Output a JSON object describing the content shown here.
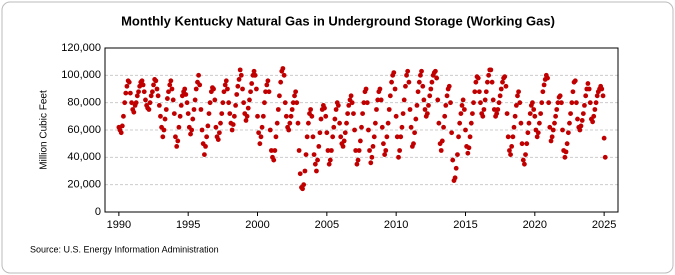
{
  "chart_data": {
    "type": "scatter",
    "title": "Monthly Kentucky Natural Gas in Underground Storage (Working Gas)",
    "y_label": "Million Cubic Feet",
    "source": "Source: U.S. Energy Information Administration",
    "color": "#c00000",
    "grid": true,
    "xlim": [
      1989,
      2026
    ],
    "ylim": [
      0,
      120000
    ],
    "xticks": [
      1990,
      1995,
      2000,
      2005,
      2010,
      2015,
      2020,
      2025
    ],
    "yticks": [
      0,
      {
        "value": 20000,
        "label": "20,000"
      },
      {
        "value": 40000,
        "label": "40,000"
      },
      {
        "value": 60000,
        "label": "60,000"
      },
      {
        "value": 80000,
        "label": "80,000"
      },
      {
        "value": 100000,
        "label": "100,000"
      },
      {
        "value": 120000,
        "label": "120,000"
      }
    ],
    "x": [
      1990,
      1990.08,
      1990.17,
      1990.25,
      1990.33,
      1990.42,
      1990.5,
      1990.58,
      1990.67,
      1990.75,
      1990.83,
      1990.92,
      1991,
      1991.08,
      1991.17,
      1991.25,
      1991.33,
      1991.42,
      1991.5,
      1991.58,
      1991.67,
      1991.75,
      1991.83,
      1991.92,
      1992,
      1992.08,
      1992.17,
      1992.25,
      1992.33,
      1992.42,
      1992.5,
      1992.58,
      1992.67,
      1992.75,
      1992.83,
      1992.92,
      1993,
      1993.08,
      1993.17,
      1993.25,
      1993.33,
      1993.42,
      1993.5,
      1993.58,
      1993.67,
      1993.75,
      1993.83,
      1993.92,
      1994,
      1994.08,
      1994.17,
      1994.25,
      1994.33,
      1994.42,
      1994.5,
      1994.58,
      1994.67,
      1994.75,
      1994.83,
      1994.92,
      1995,
      1995.08,
      1995.17,
      1995.25,
      1995.33,
      1995.42,
      1995.5,
      1995.58,
      1995.67,
      1995.75,
      1995.83,
      1995.92,
      1996,
      1996.08,
      1996.17,
      1996.25,
      1996.33,
      1996.42,
      1996.5,
      1996.58,
      1996.67,
      1996.75,
      1996.83,
      1996.92,
      1997,
      1997.08,
      1997.17,
      1997.25,
      1997.33,
      1997.42,
      1997.5,
      1997.58,
      1997.67,
      1997.75,
      1997.83,
      1997.92,
      1998,
      1998.08,
      1998.17,
      1998.25,
      1998.33,
      1998.42,
      1998.5,
      1998.58,
      1998.67,
      1998.75,
      1998.83,
      1998.92,
      1999,
      1999.08,
      1999.17,
      1999.25,
      1999.33,
      1999.42,
      1999.5,
      1999.58,
      1999.67,
      1999.75,
      1999.83,
      1999.92,
      2000,
      2000.08,
      2000.17,
      2000.25,
      2000.33,
      2000.42,
      2000.5,
      2000.58,
      2000.67,
      2000.75,
      2000.83,
      2000.92,
      2001,
      2001.08,
      2001.17,
      2001.25,
      2001.33,
      2001.42,
      2001.5,
      2001.58,
      2001.67,
      2001.75,
      2001.83,
      2001.92,
      2002,
      2002.08,
      2002.17,
      2002.25,
      2002.33,
      2002.42,
      2002.5,
      2002.58,
      2002.67,
      2002.75,
      2002.83,
      2002.92,
      2003,
      2003.08,
      2003.17,
      2003.25,
      2003.33,
      2003.42,
      2003.5,
      2003.58,
      2003.67,
      2003.75,
      2003.83,
      2003.92,
      2004,
      2004.08,
      2004.17,
      2004.25,
      2004.33,
      2004.42,
      2004.5,
      2004.58,
      2004.67,
      2004.75,
      2004.83,
      2004.92,
      2005,
      2005.08,
      2005.17,
      2005.25,
      2005.33,
      2005.42,
      2005.5,
      2005.58,
      2005.67,
      2005.75,
      2005.83,
      2005.92,
      2006,
      2006.08,
      2006.17,
      2006.25,
      2006.33,
      2006.42,
      2006.5,
      2006.58,
      2006.67,
      2006.75,
      2006.83,
      2006.92,
      2007,
      2007.08,
      2007.17,
      2007.25,
      2007.33,
      2007.42,
      2007.5,
      2007.58,
      2007.67,
      2007.75,
      2007.83,
      2007.92,
      2008,
      2008.08,
      2008.17,
      2008.25,
      2008.33,
      2008.42,
      2008.5,
      2008.58,
      2008.67,
      2008.75,
      2008.83,
      2008.92,
      2009,
      2009.08,
      2009.17,
      2009.25,
      2009.33,
      2009.42,
      2009.5,
      2009.58,
      2009.67,
      2009.75,
      2009.83,
      2009.92,
      2010,
      2010.08,
      2010.17,
      2010.25,
      2010.33,
      2010.42,
      2010.5,
      2010.58,
      2010.67,
      2010.75,
      2010.83,
      2010.92,
      2011,
      2011.08,
      2011.17,
      2011.25,
      2011.33,
      2011.42,
      2011.5,
      2011.58,
      2011.67,
      2011.75,
      2011.83,
      2011.92,
      2012,
      2012.08,
      2012.17,
      2012.25,
      2012.33,
      2012.42,
      2012.5,
      2012.58,
      2012.67,
      2012.75,
      2012.83,
      2012.92,
      2013,
      2013.08,
      2013.17,
      2013.25,
      2013.33,
      2013.42,
      2013.5,
      2013.58,
      2013.67,
      2013.75,
      2013.83,
      2013.92,
      2014,
      2014.08,
      2014.17,
      2014.25,
      2014.33,
      2014.42,
      2014.5,
      2014.58,
      2014.67,
      2014.75,
      2014.83,
      2014.92,
      2015,
      2015.08,
      2015.17,
      2015.25,
      2015.33,
      2015.42,
      2015.5,
      2015.58,
      2015.67,
      2015.75,
      2015.83,
      2015.92,
      2016,
      2016.08,
      2016.17,
      2016.25,
      2016.33,
      2016.42,
      2016.5,
      2016.58,
      2016.67,
      2016.75,
      2016.83,
      2016.92,
      2017,
      2017.08,
      2017.17,
      2017.25,
      2017.33,
      2017.42,
      2017.5,
      2017.58,
      2017.67,
      2017.75,
      2017.83,
      2017.92,
      2018,
      2018.08,
      2018.17,
      2018.25,
      2018.33,
      2018.42,
      2018.5,
      2018.58,
      2018.67,
      2018.75,
      2018.83,
      2018.92,
      2019,
      2019.08,
      2019.17,
      2019.25,
      2019.33,
      2019.42,
      2019.5,
      2019.58,
      2019.67,
      2019.75,
      2019.83,
      2019.92,
      2020,
      2020.08,
      2020.17,
      2020.25,
      2020.33,
      2020.42,
      2020.5,
      2020.58,
      2020.67,
      2020.75,
      2020.83,
      2020.92,
      2021,
      2021.08,
      2021.17,
      2021.25,
      2021.33,
      2021.42,
      2021.5,
      2021.58,
      2021.67,
      2021.75,
      2021.83,
      2021.92,
      2022,
      2022.08,
      2022.17,
      2022.25,
      2022.33,
      2022.42,
      2022.5,
      2022.58,
      2022.67,
      2022.75,
      2022.83,
      2022.92,
      2023,
      2023.08,
      2023.17,
      2023.25,
      2023.33,
      2023.42,
      2023.5,
      2023.58,
      2023.67,
      2023.75,
      2023.83,
      2023.92,
      2024,
      2024.08,
      2024.17,
      2024.25,
      2024.33,
      2024.42,
      2024.5,
      2024.58,
      2024.67,
      2024.75,
      2024.83,
      2024.92,
      2025,
      2025.08
    ],
    "values": [
      62000,
      60000,
      58000,
      63000,
      70000,
      80000,
      87000,
      92000,
      96000,
      95000,
      87000,
      80000,
      75000,
      73000,
      78000,
      80000,
      85000,
      88000,
      92000,
      95000,
      96000,
      93000,
      88000,
      82000,
      78000,
      76000,
      75000,
      80000,
      85000,
      88000,
      93000,
      97000,
      96000,
      90000,
      85000,
      78000,
      70000,
      62000,
      55000,
      60000,
      68000,
      75000,
      83000,
      88000,
      93000,
      96000,
      90000,
      82000,
      72000,
      55000,
      48000,
      52000,
      62000,
      70000,
      78000,
      85000,
      88000,
      90000,
      86000,
      80000,
      72000,
      62000,
      57000,
      60000,
      68000,
      75000,
      82000,
      90000,
      95000,
      100000,
      93000,
      75000,
      60000,
      50000,
      42000,
      48000,
      55000,
      63000,
      72000,
      80000,
      88000,
      91000,
      90000,
      82000,
      62000,
      55000,
      53000,
      58000,
      65000,
      72000,
      80000,
      88000,
      93000,
      96000,
      90000,
      80000,
      72000,
      65000,
      60000,
      64000,
      70000,
      78000,
      86000,
      92000,
      97000,
      104000,
      100000,
      90000,
      80000,
      72000,
      67000,
      70000,
      76000,
      82000,
      88000,
      94000,
      100000,
      103000,
      100000,
      90000,
      70000,
      58000,
      50000,
      55000,
      62000,
      70000,
      80000,
      88000,
      93000,
      96000,
      88000,
      60000,
      45000,
      40000,
      38000,
      45000,
      55000,
      65000,
      75000,
      85000,
      95000,
      103000,
      105000,
      100000,
      80000,
      70000,
      62000,
      60000,
      65000,
      70000,
      75000,
      80000,
      85000,
      88000,
      80000,
      65000,
      45000,
      28000,
      18000,
      17000,
      20000,
      30000,
      42000,
      55000,
      65000,
      72000,
      75000,
      70000,
      55000,
      42000,
      35000,
      30000,
      38000,
      48000,
      58000,
      68000,
      75000,
      78000,
      76000,
      70000,
      58000,
      45000,
      35000,
      38000,
      45000,
      55000,
      62000,
      68000,
      75000,
      80000,
      78000,
      65000,
      55000,
      50000,
      48000,
      52000,
      58000,
      65000,
      72000,
      78000,
      82000,
      85000,
      80000,
      72000,
      60000,
      45000,
      35000,
      38000,
      45000,
      52000,
      62000,
      72000,
      80000,
      88000,
      90000,
      80000,
      60000,
      45000,
      36000,
      40000,
      48000,
      55000,
      65000,
      75000,
      82000,
      88000,
      90000,
      82000,
      62000,
      50000,
      42000,
      45000,
      55000,
      65000,
      75000,
      85000,
      95000,
      100000,
      102000,
      90000,
      70000,
      55000,
      40000,
      45000,
      55000,
      62000,
      72000,
      82000,
      92000,
      100000,
      103000,
      95000,
      75000,
      62000,
      48000,
      50000,
      58000,
      68000,
      78000,
      88000,
      95000,
      100000,
      103000,
      92000,
      82000,
      75000,
      70000,
      72000,
      78000,
      85000,
      90000,
      95000,
      100000,
      102000,
      103000,
      98000,
      82000,
      65000,
      50000,
      45000,
      52000,
      62000,
      70000,
      78000,
      85000,
      90000,
      92000,
      80000,
      58000,
      38000,
      23000,
      25000,
      32000,
      42000,
      55000,
      65000,
      72000,
      78000,
      82000,
      75000,
      60000,
      48000,
      43000,
      47000,
      55000,
      65000,
      72000,
      80000,
      88000,
      95000,
      99000,
      98000,
      88000,
      80000,
      72000,
      70000,
      75000,
      82000,
      88000,
      95000,
      100000,
      104000,
      104000,
      95000,
      82000,
      75000,
      70000,
      72000,
      75000,
      80000,
      85000,
      90000,
      95000,
      98000,
      99000,
      92000,
      72000,
      55000,
      45000,
      42000,
      48000,
      55000,
      62000,
      70000,
      78000,
      85000,
      88000,
      80000,
      65000,
      50000,
      38000,
      35000,
      42000,
      50000,
      58000,
      65000,
      72000,
      78000,
      80000,
      75000,
      70000,
      60000,
      55000,
      58000,
      65000,
      72000,
      80000,
      88000,
      93000,
      97000,
      100000,
      98000,
      80000,
      62000,
      52000,
      55000,
      60000,
      65000,
      70000,
      75000,
      80000,
      84000,
      85000,
      80000,
      60000,
      45000,
      40000,
      44000,
      50000,
      58000,
      65000,
      72000,
      80000,
      88000,
      95000,
      96000,
      80000,
      68000,
      62000,
      60000,
      63000,
      67000,
      72000,
      78000,
      85000,
      90000,
      94000,
      90000,
      80000,
      68000,
      66000,
      70000,
      75000,
      80000,
      85000,
      88000,
      90000,
      92000,
      90000,
      85000,
      54000,
      40000
    ]
  }
}
